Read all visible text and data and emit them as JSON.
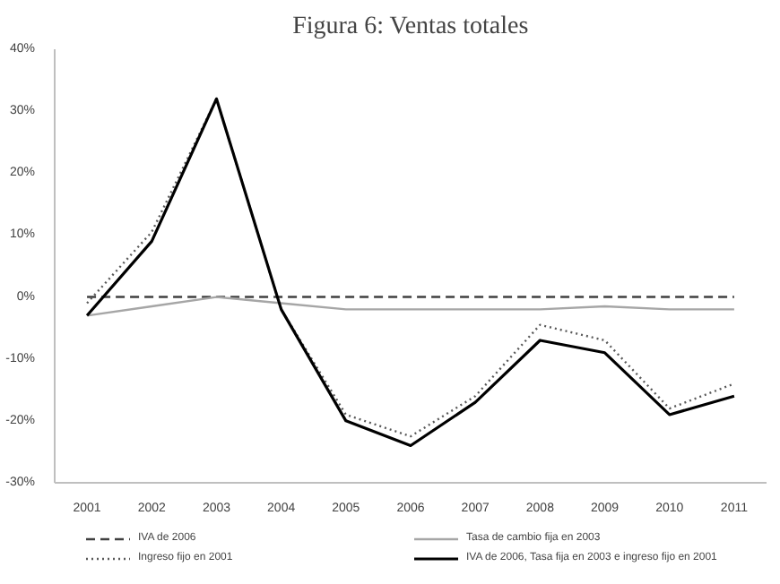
{
  "chart_data": {
    "type": "line",
    "title": "Figura 6: Ventas totales",
    "categories": [
      "2001",
      "2002",
      "2003",
      "2004",
      "2005",
      "2006",
      "2007",
      "2008",
      "2009",
      "2010",
      "2011"
    ],
    "ylim": [
      -30,
      40
    ],
    "yticks": [
      {
        "value": -30,
        "label": "-30%"
      },
      {
        "value": -20,
        "label": "-20%"
      },
      {
        "value": -10,
        "label": "-10%"
      },
      {
        "value": 0,
        "label": "0%"
      },
      {
        "value": 10,
        "label": "10%"
      },
      {
        "value": 20,
        "label": "20%"
      },
      {
        "value": 30,
        "label": "30%"
      },
      {
        "value": 40,
        "label": "40%"
      }
    ],
    "grid": false,
    "legend": "bottom",
    "series": [
      {
        "name": "IVA de 2006",
        "color": "#404040",
        "line_style": "dashed",
        "values": [
          0,
          0,
          0,
          0,
          0,
          0,
          0,
          0,
          0,
          0,
          0
        ]
      },
      {
        "name": "Tasa de cambio fija en 2003",
        "color": "#a6a6a6",
        "line_style": "solid",
        "values": [
          -3,
          -1.5,
          0,
          -1,
          -2,
          -2,
          -2,
          -2,
          -1.5,
          -2,
          -2
        ]
      },
      {
        "name": "Ingreso fijo en 2001",
        "color": "#595959",
        "line_style": "dotted",
        "values": [
          -1,
          10.5,
          32,
          -2,
          -19,
          -22.5,
          -16,
          -4.5,
          -7,
          -18,
          -14
        ]
      },
      {
        "name": "IVA de 2006, Tasa fija en 2003 e ingreso fijo en 2001",
        "color": "#000000",
        "line_style": "solid",
        "values": [
          -3,
          9,
          32,
          -2,
          -20,
          -24,
          -17,
          -7,
          -9,
          -19,
          -16
        ]
      }
    ]
  }
}
